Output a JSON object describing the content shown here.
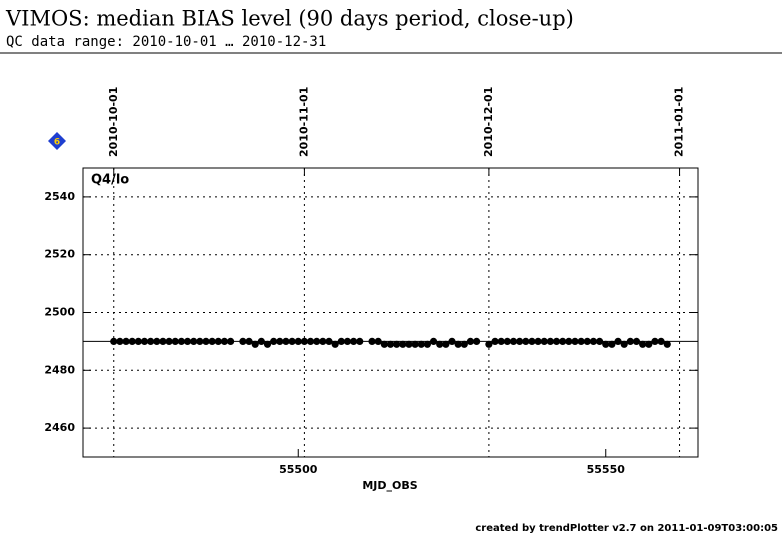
{
  "chart_data": {
    "type": "scatter",
    "title": "VIMOS: median BIAS level (90 days period, close-up)",
    "subtitle": "QC data range: 2010-10-01 … 2010-12-31",
    "panel_label": "Q4/lo",
    "badge": "6",
    "x_label": "MJD_OBS",
    "footer": "created by trendPlotter v2.7 on 2011-01-09T03:00:05",
    "xlim": [
      55465,
      55565
    ],
    "ylim": [
      2450,
      2550
    ],
    "xticks": [
      55500,
      55550
    ],
    "yticks": [
      2460,
      2480,
      2500,
      2520,
      2540
    ],
    "x2ticks": [
      {
        "value": 55470,
        "label": "2010-10-01"
      },
      {
        "value": 55501,
        "label": "2010-11-01"
      },
      {
        "value": 55531,
        "label": "2010-12-01"
      },
      {
        "value": 55562,
        "label": "2011-01-01"
      }
    ],
    "reference_line": 2490,
    "grid": true,
    "color": "#000000",
    "x": [
      55470,
      55471,
      55472,
      55473,
      55474,
      55475,
      55476,
      55477,
      55478,
      55479,
      55480,
      55481,
      55482,
      55483,
      55484,
      55485,
      55486,
      55487,
      55488,
      55489,
      55491,
      55492,
      55493,
      55494,
      55495,
      55496,
      55497,
      55498,
      55499,
      55500,
      55501,
      55502,
      55503,
      55504,
      55505,
      55506,
      55507,
      55508,
      55509,
      55510,
      55512,
      55513,
      55514,
      55515,
      55516,
      55517,
      55518,
      55519,
      55520,
      55521,
      55522,
      55523,
      55524,
      55525,
      55526,
      55527,
      55528,
      55529,
      55531,
      55532,
      55533,
      55534,
      55535,
      55536,
      55537,
      55538,
      55539,
      55540,
      55541,
      55542,
      55543,
      55544,
      55545,
      55546,
      55547,
      55548,
      55549,
      55550,
      55551,
      55552,
      55553,
      55554,
      55555,
      55556,
      55557,
      55558,
      55559,
      55560
    ],
    "values": [
      2490,
      2490,
      2490,
      2490,
      2490,
      2490,
      2490,
      2490,
      2490,
      2490,
      2490,
      2490,
      2490,
      2490,
      2490,
      2490,
      2490,
      2490,
      2490,
      2490,
      2490,
      2490,
      2489,
      2490,
      2489,
      2490,
      2490,
      2490,
      2490,
      2490,
      2490,
      2490,
      2490,
      2490,
      2490,
      2489,
      2490,
      2490,
      2490,
      2490,
      2490,
      2490,
      2489,
      2489,
      2489,
      2489,
      2489,
      2489,
      2489,
      2489,
      2490,
      2489,
      2489,
      2490,
      2489,
      2489,
      2490,
      2490,
      2489,
      2490,
      2490,
      2490,
      2490,
      2490,
      2490,
      2490,
      2490,
      2490,
      2490,
      2490,
      2490,
      2490,
      2490,
      2490,
      2490,
      2490,
      2490,
      2489,
      2489,
      2490,
      2489,
      2490,
      2490,
      2489,
      2489,
      2490,
      2490,
      2489
    ]
  }
}
